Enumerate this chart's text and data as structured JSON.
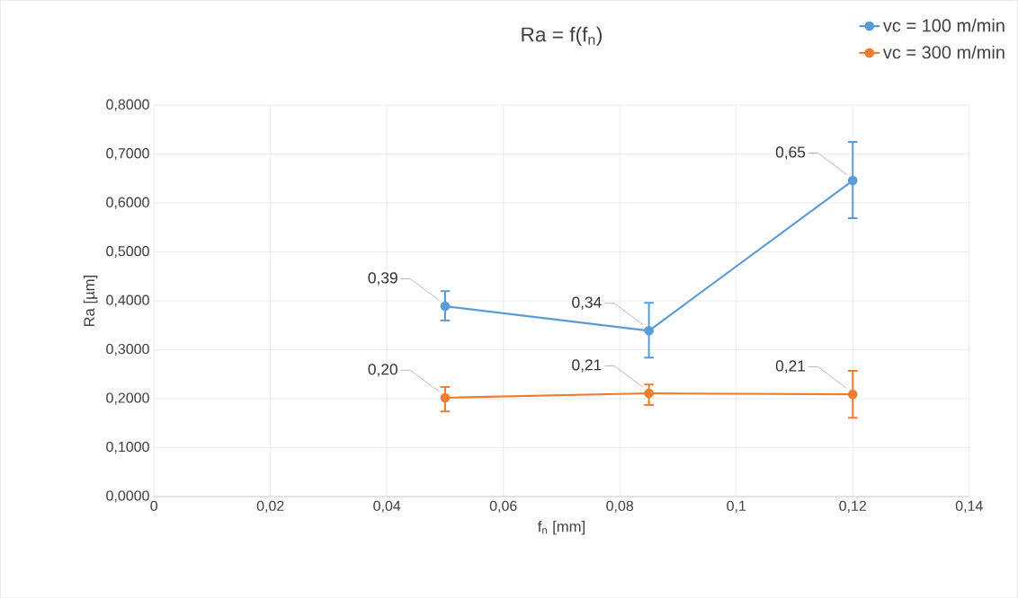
{
  "chart_data": {
    "type": "line",
    "title": "Ra = f(f$_{n}$)",
    "xlabel": "f$_{n}$ [mm]",
    "ylabel": "Ra [µm]",
    "x": [
      0.05,
      0.085,
      0.12
    ],
    "series": [
      {
        "name": "vc = 100 m/min",
        "color": "#5b9bd5",
        "values": [
          0.389,
          0.339,
          0.646
        ],
        "errors": [
          [
            0.36,
            0.42
          ],
          [
            0.284,
            0.396
          ],
          [
            0.569,
            0.725
          ]
        ],
        "value_labels": [
          "0,39",
          "0,34",
          "0,65"
        ]
      },
      {
        "name": "vc = 300 m/min",
        "color": "#ed7d31",
        "values": [
          0.202,
          0.211,
          0.209
        ],
        "errors": [
          [
            0.174,
            0.224
          ],
          [
            0.187,
            0.229
          ],
          [
            0.161,
            0.257
          ]
        ],
        "value_labels": [
          "0,20",
          "0,21",
          "0,21"
        ]
      }
    ],
    "xlim": [
      0,
      0.14
    ],
    "xticks": [
      {
        "value": 0,
        "label": "0"
      },
      {
        "value": 0.02,
        "label": "0,02"
      },
      {
        "value": 0.04,
        "label": "0,04"
      },
      {
        "value": 0.06,
        "label": "0,06"
      },
      {
        "value": 0.08,
        "label": "0,08"
      },
      {
        "value": 0.1,
        "label": "0,1"
      },
      {
        "value": 0.12,
        "label": "0,12"
      },
      {
        "value": 0.14,
        "label": "0,14"
      }
    ],
    "ylim": [
      0,
      0.8
    ],
    "yticks": [
      {
        "value": 0,
        "label": "0,0000"
      },
      {
        "value": 0.1,
        "label": "0,1000"
      },
      {
        "value": 0.2,
        "label": "0,2000"
      },
      {
        "value": 0.3,
        "label": "0,3000"
      },
      {
        "value": 0.4,
        "label": "0,4000"
      },
      {
        "value": 0.5,
        "label": "0,5000"
      },
      {
        "value": 0.6,
        "label": "0,6000"
      },
      {
        "value": 0.7,
        "label": "0,7000"
      },
      {
        "value": 0.8,
        "label": "0,8000"
      }
    ],
    "grid": true,
    "legend": "top right",
    "marker": "circle",
    "line_style": "solid"
  }
}
